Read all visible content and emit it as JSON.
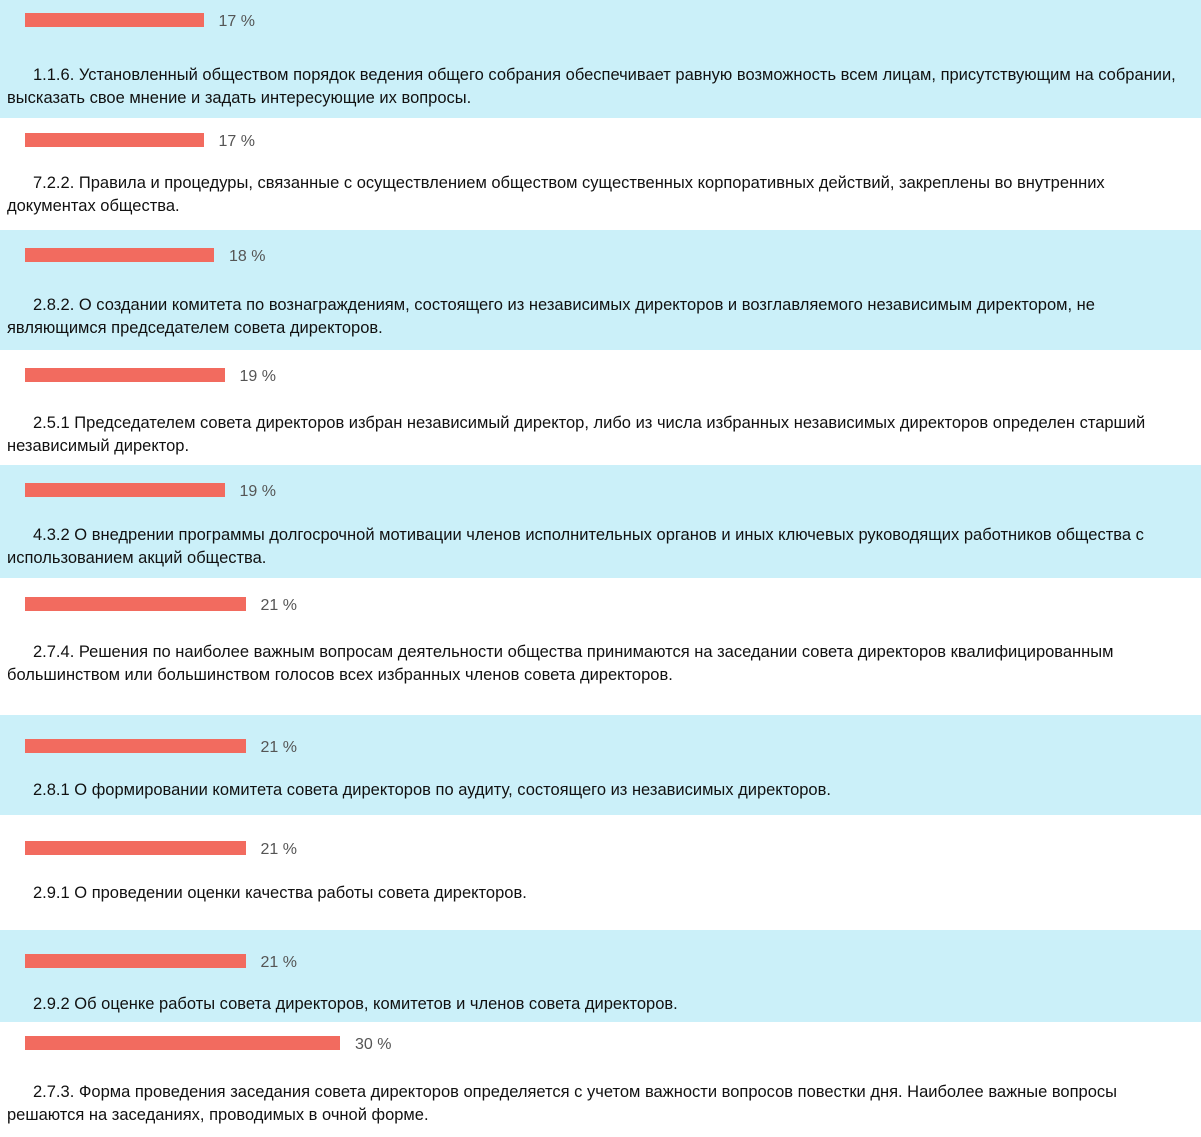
{
  "chart_data": {
    "type": "bar",
    "color": "#f26b5f",
    "categories": [
      "1.1.6. Установленный обществом порядок ведения общего собрания обеспечивает равную возможность всем лицам, присутствующим на собрании, высказать свое мнение и задать интересующие их вопросы.",
      "7.2.2. Правила и процедуры, связанные с осуществлением обществом существенных корпоративных действий, закреплены во внутренних документах общества.",
      "2.8.2. О создании комитета по вознаграждениям, состоящего из независимых директоров и возглавляемого независимым директором, не являющимся председателем совета директоров.",
      "2.5.1 Председателем совета директоров избран независимый директор, либо из числа избранных независимых директоров определен старший независимый директор.",
      "4.3.2 О внедрении программы долгосрочной мотивации членов исполнительных органов и иных ключевых руководящих работников общества с использованием акций общества.",
      "2.7.4. Решения по наиболее важным вопросам деятельности общества принимаются на заседании совета директоров квалифицированным большинством или большинством голосов всех избранных членов совета директоров.",
      "2.8.1 О формировании комитета совета директоров по аудиту, состоящего из независимых директоров.",
      "2.9.1 О проведении оценки качества работы совета директоров.",
      "2.9.2 Об оценке работы совета директоров, комитетов и членов совета директоров.",
      "2.7.3. Форма проведения заседания совета директоров определяется с учетом важности вопросов повестки дня. Наиболее важные вопросы решаются на заседаниях, проводимых в очной форме."
    ],
    "values": [
      17,
      17,
      18,
      19,
      19,
      21,
      21,
      21,
      21,
      30
    ],
    "value_labels": [
      "17 %",
      "17 %",
      "18 %",
      "19 %",
      "19 %",
      "21 %",
      "21 %",
      "21 %",
      "21 %",
      "30 %"
    ]
  }
}
